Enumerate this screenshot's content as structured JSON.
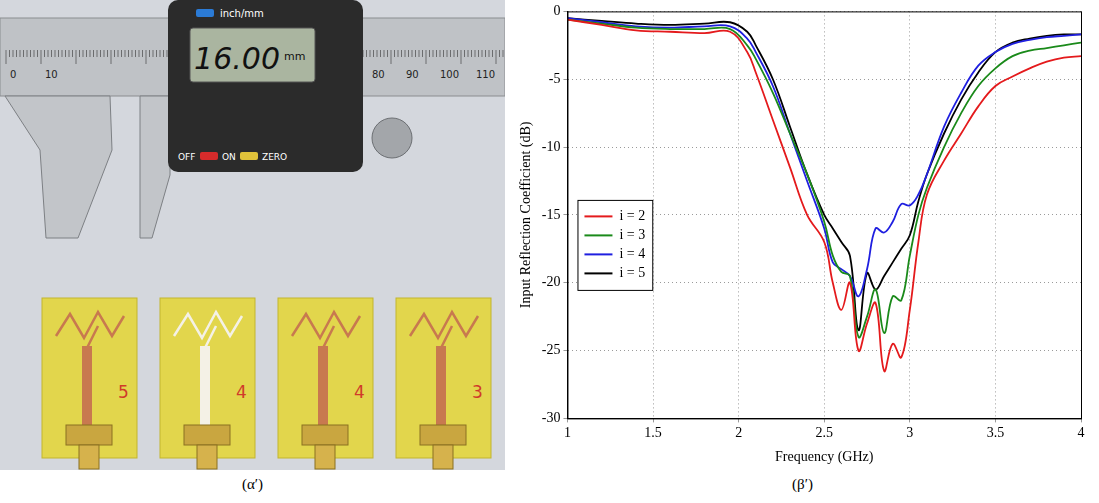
{
  "photo": {
    "caption": "(α′)",
    "caliper": {
      "display": "16.00",
      "unit": "mm",
      "mode_label": "inch/mm",
      "button_labels": [
        "OFF",
        "ON",
        "ZERO"
      ],
      "scale_labels": [
        "0",
        "10",
        "80",
        "90",
        "100",
        "110"
      ]
    },
    "boards": [
      {
        "label": "5"
      },
      {
        "label": "4"
      },
      {
        "label": "4"
      },
      {
        "label": "3"
      }
    ]
  },
  "chart_data": {
    "type": "line",
    "caption": "(β′)",
    "x_label": "Frequency (GHz)",
    "y_label": "Input Reflection Coefficient (dB)",
    "x": [
      1.0,
      1.2,
      1.4,
      1.6,
      1.8,
      1.95,
      2.05,
      2.1,
      2.2,
      2.3,
      2.4,
      2.5,
      2.55,
      2.6,
      2.65,
      2.7,
      2.75,
      2.8,
      2.85,
      2.9,
      2.95,
      3.0,
      3.05,
      3.1,
      3.2,
      3.3,
      3.4,
      3.5,
      3.6,
      3.7,
      3.8,
      3.9,
      4.0
    ],
    "series": [
      {
        "name": "i = 2",
        "color": "#e41a1c",
        "values": [
          -0.6,
          -1.0,
          -1.4,
          -1.5,
          -1.6,
          -1.5,
          -3,
          -4.5,
          -8,
          -11.5,
          -15,
          -17,
          -20,
          -22,
          -20,
          -25,
          -23,
          -21.5,
          -26.5,
          -24.5,
          -25.5,
          -22,
          -17,
          -13.5,
          -11,
          -9,
          -7,
          -5.5,
          -4.8,
          -4.2,
          -3.7,
          -3.4,
          -3.3
        ]
      },
      {
        "name": "i = 3",
        "color": "#1a8a1a",
        "values": [
          -0.6,
          -0.9,
          -1.2,
          -1.3,
          -1.3,
          -1.3,
          -2.5,
          -3.5,
          -6,
          -9,
          -12,
          -15.5,
          -18,
          -19.2,
          -19.5,
          -24,
          -22.5,
          -20.5,
          -23.7,
          -21,
          -21.3,
          -18,
          -15,
          -13,
          -10,
          -7.5,
          -5.5,
          -4.2,
          -3.3,
          -2.9,
          -2.7,
          -2.5,
          -2.3
        ]
      },
      {
        "name": "i = 4",
        "color": "#1f1fe0",
        "values": [
          -0.5,
          -0.8,
          -1.1,
          -1.2,
          -1.1,
          -1.1,
          -2,
          -3,
          -5.5,
          -9,
          -12.5,
          -16,
          -18.5,
          -19,
          -19.5,
          -21,
          -19,
          -16,
          -16.3,
          -15.5,
          -14.2,
          -14.3,
          -13.5,
          -12,
          -8.5,
          -6,
          -4,
          -3,
          -2.4,
          -2.1,
          -1.9,
          -1.8,
          -1.7
        ]
      },
      {
        "name": "i = 5",
        "color": "#000000",
        "values": [
          -0.5,
          -0.7,
          -0.9,
          -1.0,
          -0.9,
          -0.8,
          -1.5,
          -2.5,
          -5,
          -8.5,
          -12,
          -15,
          -16,
          -17,
          -18,
          -23.5,
          -19.3,
          -20.5,
          -19.5,
          -18.5,
          -17.5,
          -16.5,
          -14,
          -12,
          -9,
          -6.5,
          -4.5,
          -3,
          -2.3,
          -2,
          -1.8,
          -1.7,
          -1.7
        ]
      }
    ],
    "xlim": [
      1,
      4
    ],
    "xticks": [
      1,
      1.5,
      2,
      2.5,
      3,
      3.5,
      4
    ],
    "ylim": [
      -30,
      0
    ],
    "yticks": [
      -30,
      -25,
      -20,
      -15,
      -10,
      -5,
      0
    ],
    "grid": true,
    "legend": "center left"
  }
}
